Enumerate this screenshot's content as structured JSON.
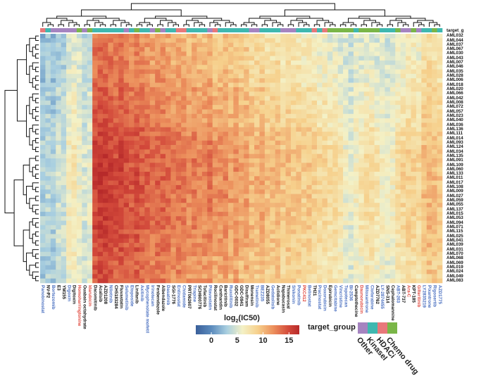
{
  "chart_data": {
    "type": "heatmap",
    "title": "",
    "colorbar": {
      "title": "log2(IC50)",
      "title_base": "log",
      "title_sub": "2",
      "title_rest": "(IC50)",
      "ticks": [
        0,
        5,
        10,
        15
      ],
      "range": [
        -3,
        17
      ],
      "colors": [
        [
          "-3",
          "#3a5f9a"
        ],
        [
          "0",
          "#5b8bbd"
        ],
        [
          "3",
          "#a9cfe0"
        ],
        [
          "6",
          "#f4f1c6"
        ],
        [
          "9",
          "#f6d08c"
        ],
        [
          "12",
          "#ec8f5c"
        ],
        [
          "15",
          "#d2483a"
        ],
        [
          "17",
          "#b72a2a"
        ]
      ]
    },
    "annotation_label": "target_g",
    "legend": {
      "title": "target_group",
      "entries": [
        {
          "key": "O",
          "label": "Other",
          "color": "#a584c0"
        },
        {
          "key": "K",
          "label": "KinaseI",
          "color": "#3fb8b0"
        },
        {
          "key": "H",
          "label": "HDACi",
          "color": "#e8787a"
        },
        {
          "key": "C",
          "label": "Chemo drug",
          "color": "#7ab648"
        }
      ]
    },
    "label_colors": {
      "b": "#4a6fc0",
      "k": "#111111",
      "r": "#e0473c"
    },
    "rows": [
      "AML032",
      "AML044",
      "AML037",
      "AML067",
      "AML030",
      "AML043",
      "AML007",
      "AML046",
      "AML035",
      "AML028",
      "AML006",
      "AML018",
      "AML020",
      "AML066",
      "AML042",
      "AML008",
      "AML072",
      "AML057",
      "AML023",
      "AML040",
      "AML036",
      "AML136",
      "AML111",
      "AML014",
      "AML093",
      "AML124",
      "AML034",
      "AML135",
      "AML091",
      "AML109",
      "AML060",
      "AML133",
      "AML011",
      "AML017",
      "AML108",
      "AML009",
      "AML027",
      "AML059",
      "AML055",
      "AML137",
      "AML015",
      "AML053",
      "AML094",
      "AML071",
      "AML115",
      "AML025",
      "AML041",
      "AML039",
      "AML031",
      "AML070",
      "AML068",
      "AML069",
      "AML019",
      "AML024",
      "AML049",
      "AML083"
    ],
    "row_effect": [
      -1.6,
      -1.6,
      -1.5,
      -1.5,
      -1.4,
      -1.4,
      -1.3,
      -1.3,
      -1.2,
      -1.2,
      -1.1,
      -1.0,
      -0.6,
      -0.5,
      -0.5,
      -0.4,
      -0.4,
      -0.3,
      -0.3,
      -0.2,
      -0.2,
      0.4,
      0.5,
      0.6,
      0.7,
      0.8,
      0.8,
      0.9,
      0.9,
      1.0,
      1.0,
      1.0,
      1.0,
      0.9,
      0.9,
      0.9,
      0.8,
      0.8,
      0.8,
      0.7,
      0.7,
      0.7,
      0.6,
      0.6,
      0.5,
      0.5,
      0.4,
      0.4,
      0.3,
      0.2,
      -0.3,
      -0.2,
      -0.1,
      0.0,
      -0.4,
      0.1
    ],
    "columns": [
      {
        "name": "Panobinostat",
        "c": "b",
        "g": "H",
        "v": 3
      },
      {
        "name": "NV-P2",
        "c": "k",
        "g": "K",
        "v": 3.5
      },
      {
        "name": "Bortezomib",
        "c": "b",
        "g": "O",
        "v": 3
      },
      {
        "name": "E3",
        "c": "k",
        "g": "O",
        "v": 4
      },
      {
        "name": "YM155",
        "c": "k",
        "g": "O",
        "v": 4
      },
      {
        "name": "Digoxin",
        "c": "b",
        "g": "O",
        "v": 6
      },
      {
        "name": "Digitoxin",
        "c": "k",
        "g": "O",
        "v": 6.5
      },
      {
        "name": "Homoharringtonine",
        "c": "r",
        "g": "C",
        "v": 5.5
      },
      {
        "name": "Ouabain octahydrate",
        "c": "k",
        "g": "O",
        "v": 4.5
      },
      {
        "name": "Idarubicin",
        "c": "r",
        "g": "C",
        "v": 5
      },
      {
        "name": "Dacomitinib",
        "c": "k",
        "g": "K",
        "v": 14.5
      },
      {
        "name": "Acalisib",
        "c": "k",
        "g": "K",
        "v": 15
      },
      {
        "name": "AZD1208",
        "c": "k",
        "g": "K",
        "v": 15
      },
      {
        "name": "Nilotinib",
        "c": "b",
        "g": "K",
        "v": 14.5
      },
      {
        "name": "CH5183284",
        "c": "k",
        "g": "K",
        "v": 14
      },
      {
        "name": "Fluvastatin",
        "c": "k",
        "g": "K",
        "v": 14.5
      },
      {
        "name": "Selumetinib",
        "c": "b",
        "g": "O",
        "v": 14
      },
      {
        "name": "Etoposide",
        "c": "b",
        "g": "K",
        "v": 13.5
      },
      {
        "name": "Linifanib",
        "c": "k",
        "g": "C",
        "v": 14
      },
      {
        "name": "Axitinib",
        "c": "b",
        "g": "K",
        "v": 13.5
      },
      {
        "name": "Mycophenolate mofetil",
        "c": "b",
        "g": "K",
        "v": 13
      },
      {
        "name": "Irinotecan",
        "c": "b",
        "g": "O",
        "v": 12.5
      },
      {
        "name": "Fenbendazole",
        "c": "k",
        "g": "C",
        "v": 13
      },
      {
        "name": "Albendazole",
        "c": "k",
        "g": "O",
        "v": 13
      },
      {
        "name": "Dasatinib",
        "c": "b",
        "g": "K",
        "v": 12.5
      },
      {
        "name": "SGI-1776",
        "c": "k",
        "g": "K",
        "v": 12
      },
      {
        "name": "Entinostat",
        "c": "b",
        "g": "H",
        "v": 12.5
      },
      {
        "name": "Chidamide",
        "c": "b",
        "g": "H",
        "v": 12
      },
      {
        "name": "PRT062607",
        "c": "k",
        "g": "K",
        "v": 11.5
      },
      {
        "name": "Triapine",
        "c": "b",
        "g": "K",
        "v": 12
      },
      {
        "name": "SCH900776",
        "c": "k",
        "g": "K",
        "v": 11.5
      },
      {
        "name": "Tofacitinib",
        "c": "k",
        "g": "K",
        "v": 11.5
      },
      {
        "name": "Pitavastatin",
        "c": "b",
        "g": "O",
        "v": 12
      },
      {
        "name": "Rocilinostat",
        "c": "k",
        "g": "H",
        "v": 11
      },
      {
        "name": "Cantharidin",
        "c": "k",
        "g": "K",
        "v": 11
      },
      {
        "name": "Baricitinib",
        "c": "k",
        "g": "K",
        "v": 11.5
      },
      {
        "name": "Ruxolitinib",
        "c": "b",
        "g": "K",
        "v": 10.5
      },
      {
        "name": "GDC-0032",
        "c": "k",
        "g": "K",
        "v": 11
      },
      {
        "name": "GDC-0941",
        "c": "k",
        "g": "K",
        "v": 10
      },
      {
        "name": "Disulfiram",
        "c": "k",
        "g": "K",
        "v": 10.5
      },
      {
        "name": "Monensin",
        "c": "k",
        "g": "O",
        "v": 9.5
      },
      {
        "name": "Trametinib",
        "c": "b",
        "g": "O",
        "v": 9.5
      },
      {
        "name": "BEZ235",
        "c": "b",
        "g": "K",
        "v": 10
      },
      {
        "name": "AZD8055",
        "c": "k",
        "g": "K",
        "v": 9
      },
      {
        "name": "Gedatolisib",
        "c": "b",
        "g": "K",
        "v": 9
      },
      {
        "name": "Actidione",
        "c": "k",
        "g": "K",
        "v": 9.5
      },
      {
        "name": "Napabucasin",
        "c": "k",
        "g": "O",
        "v": 8.5
      },
      {
        "name": "Thimerosal",
        "c": "k",
        "g": "O",
        "v": 9
      },
      {
        "name": "Shikonin",
        "c": "b",
        "g": "O",
        "v": 8.5
      },
      {
        "name": "Ponatinib",
        "c": "b",
        "g": "K",
        "v": 8.5
      },
      {
        "name": "PKC412",
        "c": "r",
        "g": "K",
        "v": 8
      },
      {
        "name": "Belinostat",
        "c": "b",
        "g": "K",
        "v": 8.5
      },
      {
        "name": "TH21",
        "c": "k",
        "g": "H",
        "v": 8
      },
      {
        "name": "Pracinostat",
        "c": "b",
        "g": "K",
        "v": 7.5
      },
      {
        "name": "Doxorubicin",
        "c": "b",
        "g": "H",
        "v": 7.5
      },
      {
        "name": "Epirubicin",
        "c": "k",
        "g": "C",
        "v": 7
      },
      {
        "name": "Gemcitabine",
        "c": "b",
        "g": "C",
        "v": 7.5
      },
      {
        "name": "Vincristine",
        "c": "b",
        "g": "C",
        "v": 6.5
      },
      {
        "name": "Topotecan",
        "c": "b",
        "g": "C",
        "v": 5.5
      },
      {
        "name": "BI-2536",
        "c": "b",
        "g": "C",
        "v": 5
      },
      {
        "name": "Camptothecine",
        "c": "k",
        "g": "K",
        "v": 6
      },
      {
        "name": "Daunorubicin",
        "c": "r",
        "g": "C",
        "v": 6.5
      },
      {
        "name": "Mitoxantrone",
        "c": "b",
        "g": "C",
        "v": 7
      },
      {
        "name": "Clofarabine",
        "c": "b",
        "g": "C",
        "v": 7
      },
      {
        "name": "AZD7762",
        "c": "k",
        "g": "C",
        "v": 6.5
      },
      {
        "name": "LY-2874455",
        "c": "b",
        "g": "K",
        "v": 6
      },
      {
        "name": "SNS-314",
        "c": "k",
        "g": "K",
        "v": 5.5
      },
      {
        "name": "Cephalomannine",
        "c": "k",
        "g": "K",
        "v": 6
      },
      {
        "name": "ABT-263",
        "c": "b",
        "g": "C",
        "v": 7
      },
      {
        "name": "ABT-737",
        "c": "k",
        "g": "O",
        "v": 7.5
      },
      {
        "name": "Ara-C",
        "c": "r",
        "g": "O",
        "v": 8
      },
      {
        "name": "KPT-185",
        "c": "k",
        "g": "C",
        "v": 8
      },
      {
        "name": "Gilteritinib",
        "c": "r",
        "g": "O",
        "v": 7.5
      },
      {
        "name": "LY2835219",
        "c": "b",
        "g": "K",
        "v": 9
      },
      {
        "name": "Pixantrone",
        "c": "b",
        "g": "K",
        "v": 9.5
      },
      {
        "name": "Rigosertib",
        "c": "b",
        "g": "C",
        "v": 9
      },
      {
        "name": "AZD1775",
        "c": "b",
        "g": "K",
        "v": 8.5
      }
    ]
  }
}
